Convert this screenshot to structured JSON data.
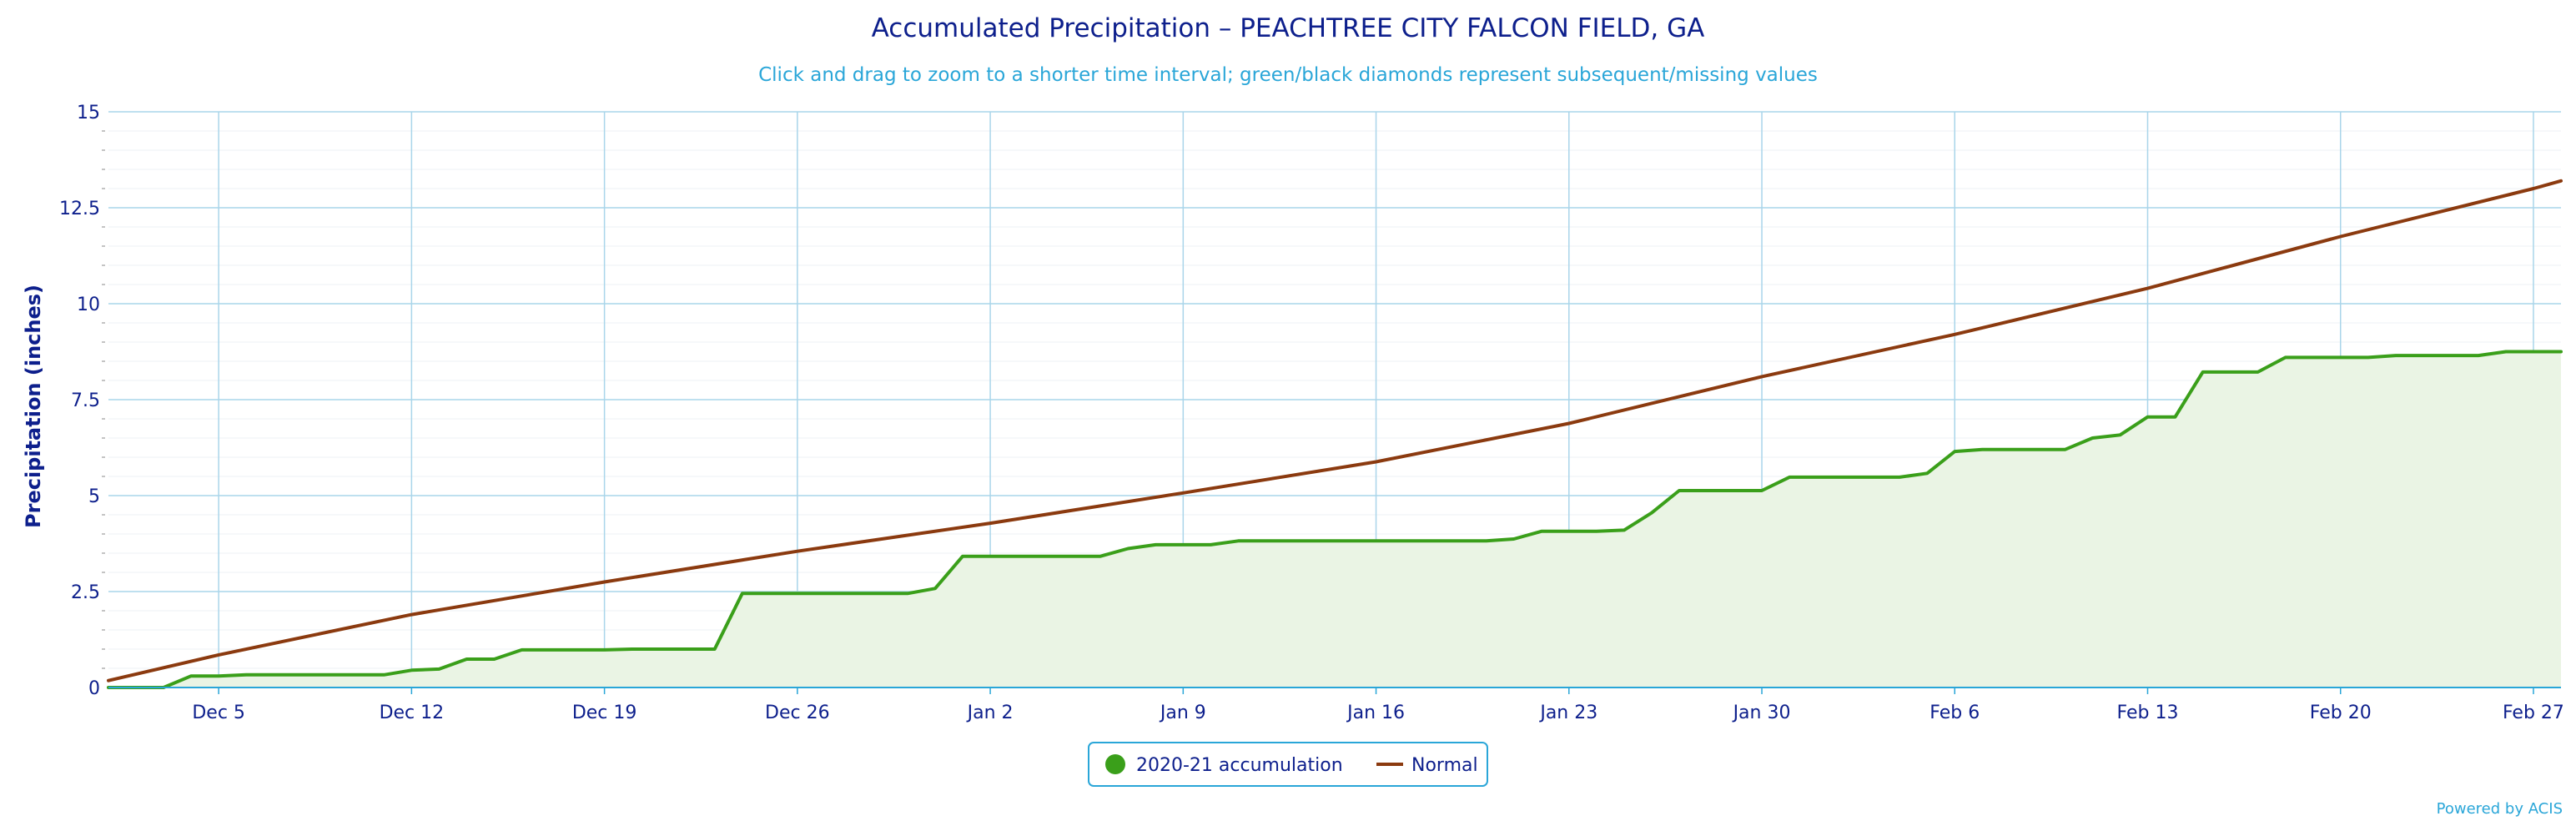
{
  "chart_data": {
    "type": "area",
    "title": "Accumulated Precipitation – PEACHTREE CITY FALCON FIELD, GA",
    "subtitle": "Click and drag to zoom to a shorter time interval; green/black diamonds represent subsequent/missing values",
    "ylabel": "Precipitation (inches)",
    "xlabel": "",
    "credit": "Powered by ACIS",
    "ylim": [
      0,
      15
    ],
    "xlim": [
      "2020-12-01",
      "2021-02-28"
    ],
    "y_ticks": [
      "0",
      "2.5",
      "5",
      "7.5",
      "10",
      "12.5",
      "15"
    ],
    "x_ticks": [
      {
        "date": "2020-12-05",
        "label": "Dec 5"
      },
      {
        "date": "2020-12-12",
        "label": "Dec 12"
      },
      {
        "date": "2020-12-19",
        "label": "Dec 19"
      },
      {
        "date": "2020-12-26",
        "label": "Dec 26"
      },
      {
        "date": "2021-01-02",
        "label": "Jan 2"
      },
      {
        "date": "2021-01-09",
        "label": "Jan 9"
      },
      {
        "date": "2021-01-16",
        "label": "Jan 16"
      },
      {
        "date": "2021-01-23",
        "label": "Jan 23"
      },
      {
        "date": "2021-01-30",
        "label": "Jan 30"
      },
      {
        "date": "2021-02-06",
        "label": "Feb 6"
      },
      {
        "date": "2021-02-13",
        "label": "Feb 13"
      },
      {
        "date": "2021-02-20",
        "label": "Feb 20"
      },
      {
        "date": "2021-02-27",
        "label": "Feb 27"
      }
    ],
    "grid": true,
    "legend_position": "bottom-center",
    "series": [
      {
        "name": "2020-21 accumulation",
        "color": "#3a9f1a",
        "fill": "#eaf4e4",
        "type": "area",
        "points": [
          [
            "2020-12-01",
            0
          ],
          [
            "2020-12-03",
            0
          ],
          [
            "2020-12-04",
            0.3
          ],
          [
            "2020-12-05",
            0.3
          ],
          [
            "2020-12-06",
            0.33
          ],
          [
            "2020-12-11",
            0.33
          ],
          [
            "2020-12-12",
            0.45
          ],
          [
            "2020-12-13",
            0.48
          ],
          [
            "2020-12-14",
            0.74
          ],
          [
            "2020-12-15",
            0.74
          ],
          [
            "2020-12-16",
            0.98
          ],
          [
            "2020-12-19",
            0.98
          ],
          [
            "2020-12-20",
            1.0
          ],
          [
            "2020-12-23",
            1.0
          ],
          [
            "2020-12-24",
            2.45
          ],
          [
            "2020-12-30",
            2.45
          ],
          [
            "2020-12-31",
            2.58
          ],
          [
            "2021-01-01",
            3.42
          ],
          [
            "2021-01-05",
            3.42
          ],
          [
            "2021-01-06",
            3.42
          ],
          [
            "2021-01-07",
            3.62
          ],
          [
            "2021-01-08",
            3.72
          ],
          [
            "2021-01-10",
            3.72
          ],
          [
            "2021-01-11",
            3.82
          ],
          [
            "2021-01-20",
            3.82
          ],
          [
            "2021-01-21",
            3.87
          ],
          [
            "2021-01-22",
            4.07
          ],
          [
            "2021-01-24",
            4.07
          ],
          [
            "2021-01-25",
            4.1
          ],
          [
            "2021-01-26",
            4.55
          ],
          [
            "2021-01-27",
            5.13
          ],
          [
            "2021-01-30",
            5.13
          ],
          [
            "2021-01-31",
            5.48
          ],
          [
            "2021-02-04",
            5.48
          ],
          [
            "2021-02-05",
            5.58
          ],
          [
            "2021-02-06",
            6.15
          ],
          [
            "2021-02-07",
            6.2
          ],
          [
            "2021-02-10",
            6.2
          ],
          [
            "2021-02-11",
            6.5
          ],
          [
            "2021-02-12",
            6.58
          ],
          [
            "2021-02-13",
            7.05
          ],
          [
            "2021-02-14",
            7.05
          ],
          [
            "2021-02-15",
            8.22
          ],
          [
            "2021-02-17",
            8.22
          ],
          [
            "2021-02-18",
            8.6
          ],
          [
            "2021-02-21",
            8.6
          ],
          [
            "2021-02-22",
            8.65
          ],
          [
            "2021-02-25",
            8.65
          ],
          [
            "2021-02-26",
            8.75
          ],
          [
            "2021-02-28",
            8.75
          ]
        ]
      },
      {
        "name": "Normal",
        "color": "#8b3a0f",
        "type": "line",
        "points": [
          [
            "2020-12-01",
            0.18
          ],
          [
            "2020-12-05",
            0.85
          ],
          [
            "2020-12-12",
            1.9
          ],
          [
            "2020-12-19",
            2.75
          ],
          [
            "2020-12-26",
            3.55
          ],
          [
            "2021-01-02",
            4.28
          ],
          [
            "2021-01-09",
            5.07
          ],
          [
            "2021-01-16",
            5.88
          ],
          [
            "2021-01-23",
            6.88
          ],
          [
            "2021-01-30",
            8.1
          ],
          [
            "2021-02-06",
            9.2
          ],
          [
            "2021-02-13",
            10.4
          ],
          [
            "2021-02-20",
            11.75
          ],
          [
            "2021-02-27",
            13.0
          ],
          [
            "2021-02-28",
            13.2
          ]
        ]
      }
    ]
  }
}
